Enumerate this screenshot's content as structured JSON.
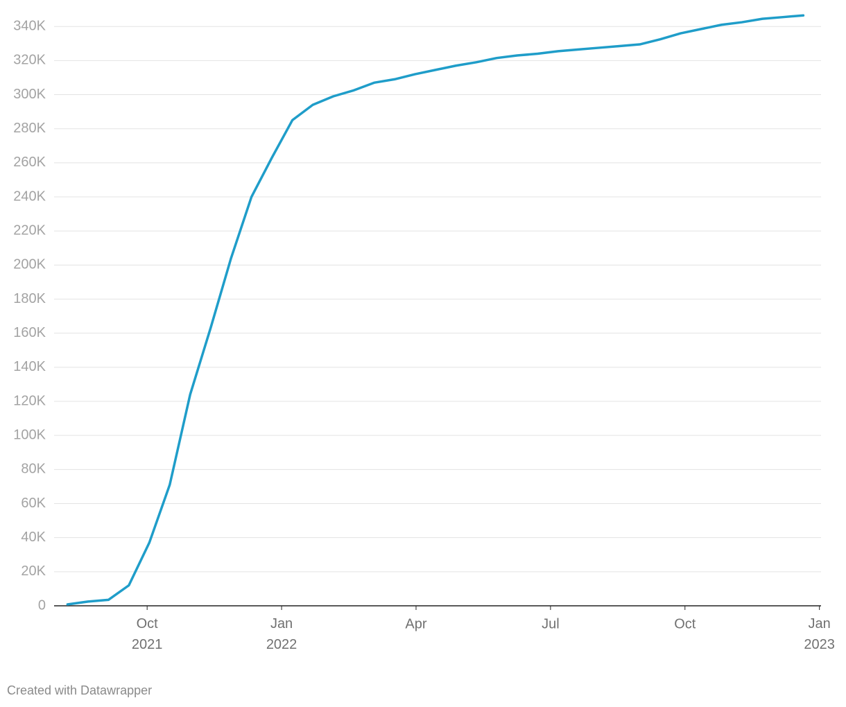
{
  "chart_data": {
    "type": "line",
    "x": [
      2021.602,
      2021.64,
      2021.678,
      2021.716,
      2021.754,
      2021.792,
      2021.83,
      2021.868,
      2021.906,
      2021.944,
      2021.982,
      2022.02,
      2022.058,
      2022.096,
      2022.134,
      2022.172,
      2022.21,
      2022.248,
      2022.286,
      2022.324,
      2022.362,
      2022.4,
      2022.438,
      2022.476,
      2022.514,
      2022.552,
      2022.59,
      2022.628,
      2022.666,
      2022.704,
      2022.742,
      2022.78,
      2022.818,
      2022.856,
      2022.894,
      2022.932,
      2022.97
    ],
    "series": [
      {
        "color": "#1f9dc9",
        "values": [
          800,
          2500,
          3500,
          12000,
          37000,
          71000,
          124000,
          163000,
          204000,
          240000,
          263000,
          285000,
          294000,
          299000,
          302500,
          307000,
          309000,
          312000,
          314500,
          317000,
          319000,
          321500,
          323000,
          324000,
          325500,
          326500,
          327500,
          328500,
          329500,
          332500,
          336000,
          338500,
          341000,
          342500,
          344500,
          345500,
          346500
        ]
      }
    ],
    "xlim": [
      2021.577,
      2023.003
    ],
    "xticks": [
      {
        "value": 2021.75,
        "label": "Oct 2021"
      },
      {
        "value": 2022.0,
        "label": "Jan 2022"
      },
      {
        "value": 2022.25,
        "label": "Apr"
      },
      {
        "value": 2022.5,
        "label": "Jul"
      },
      {
        "value": 2022.75,
        "label": "Oct"
      },
      {
        "value": 2023.0,
        "label": "Jan 2023"
      }
    ],
    "ylim": [
      0,
      347000
    ],
    "yticks": [
      0,
      {
        "value": 20000,
        "label": "20K"
      },
      {
        "value": 40000,
        "label": "40K"
      },
      {
        "value": 60000,
        "label": "60K"
      },
      {
        "value": 80000,
        "label": "80K"
      },
      {
        "value": 100000,
        "label": "100K"
      },
      {
        "value": 120000,
        "label": "120K"
      },
      {
        "value": 140000,
        "label": "140K"
      },
      {
        "value": 160000,
        "label": "160K"
      },
      {
        "value": 180000,
        "label": "180K"
      },
      {
        "value": 200000,
        "label": "200K"
      },
      {
        "value": 220000,
        "label": "220K"
      },
      {
        "value": 240000,
        "label": "240K"
      },
      {
        "value": 260000,
        "label": "260K"
      },
      {
        "value": 280000,
        "label": "280K"
      },
      {
        "value": 300000,
        "label": "300K"
      },
      {
        "value": 320000,
        "label": "320K"
      },
      {
        "value": 340000,
        "label": "340K"
      }
    ],
    "grid": true,
    "credit": "Created with Datawrapper"
  }
}
